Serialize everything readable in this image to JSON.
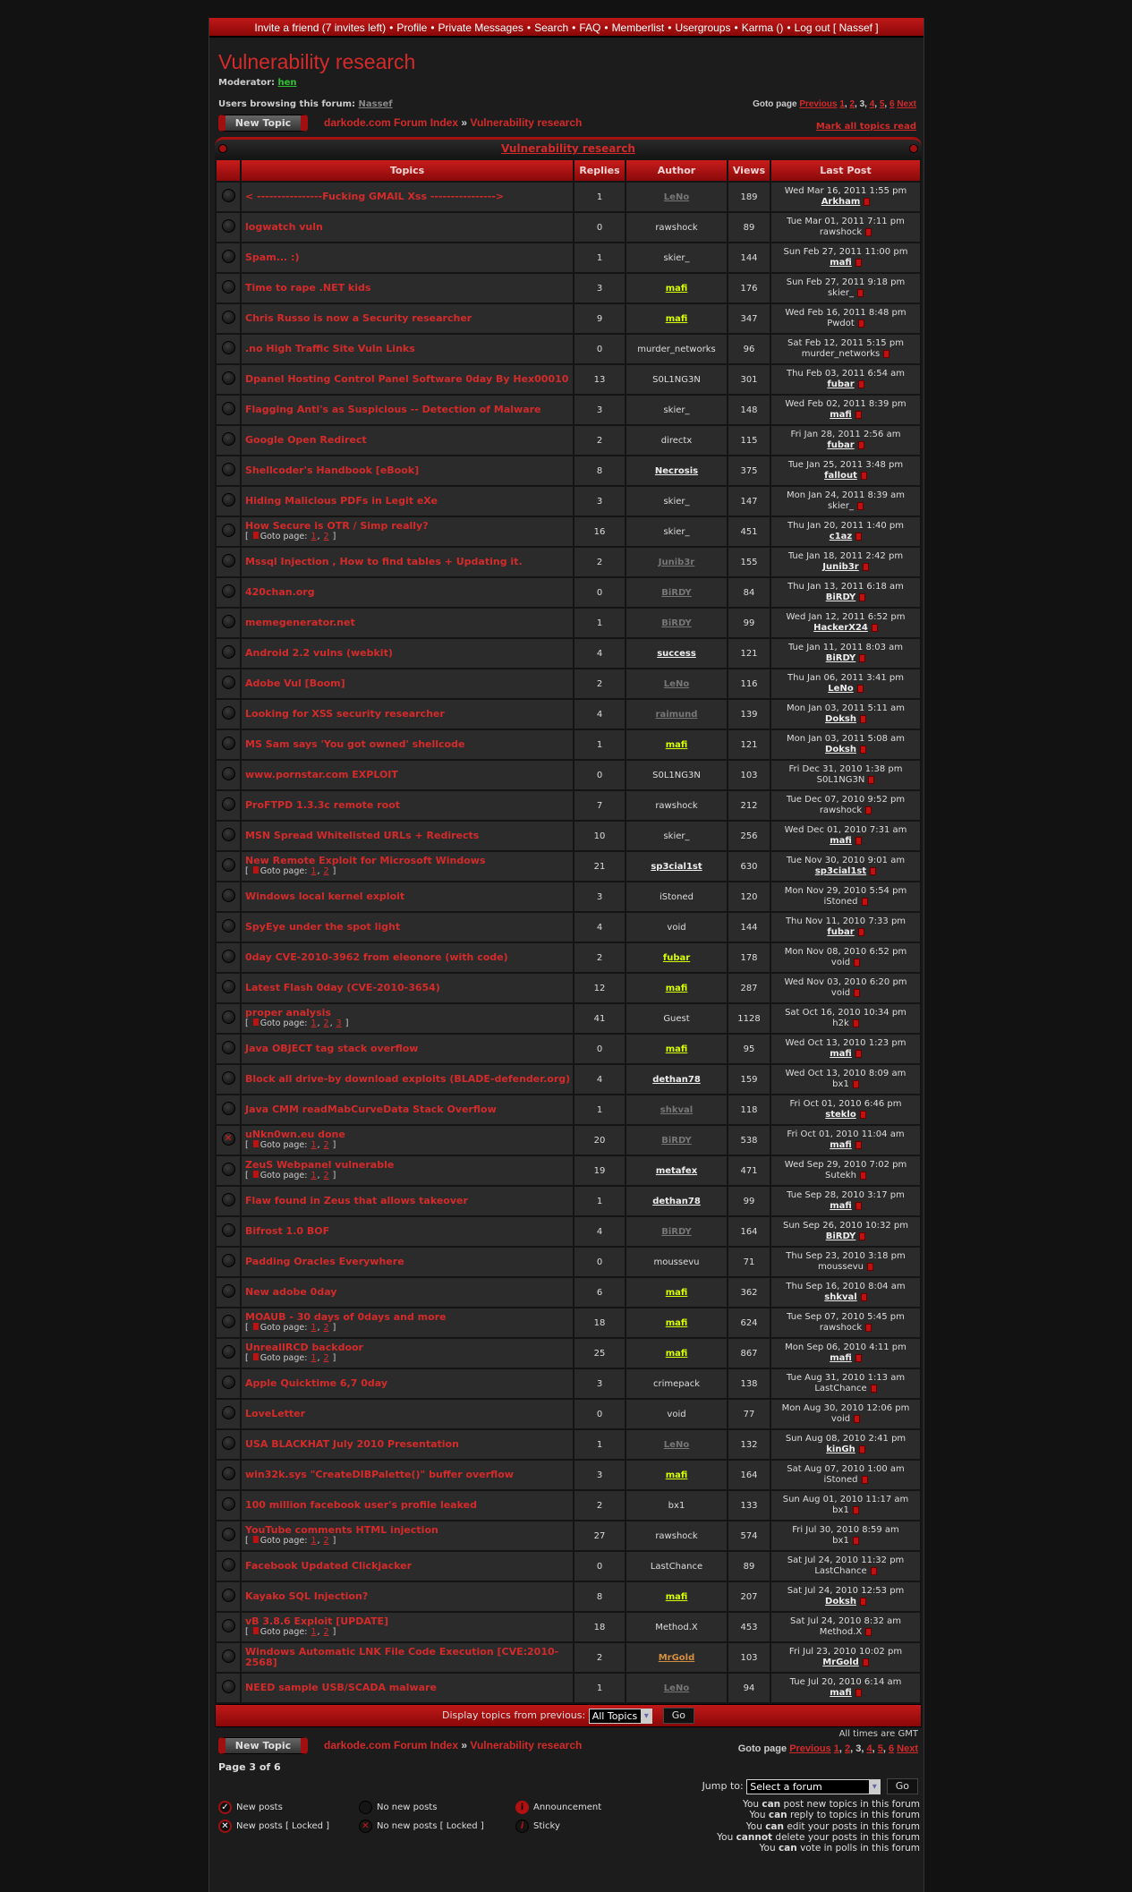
{
  "nav": {
    "items": [
      "Invite a friend (7 invites left)",
      "Profile",
      "Private Messages",
      "Search",
      "FAQ",
      "Memberlist",
      "Usergroups",
      "Karma ()",
      "Log out [ Nassef ]"
    ]
  },
  "forum_title": "Vulnerability research",
  "moderator_label": "Moderator:",
  "moderator": "hen",
  "browsing_label": "Users browsing this forum:",
  "browsing_user": "Nassef",
  "pagination": {
    "label": "Goto page",
    "previous": "Previous",
    "next": "Next",
    "pages": [
      "1",
      "2",
      "3",
      "4",
      "5",
      "6"
    ],
    "current": "3"
  },
  "new_topic": "New Topic",
  "breadcrumb": {
    "index": "darkode.com Forum Index",
    "sep": "»",
    "forum": "Vulnerability research"
  },
  "mark_all": "Mark all topics read",
  "table": {
    "caption": "Vulnerability research",
    "headers": {
      "topics": "Topics",
      "replies": "Replies",
      "author": "Author",
      "views": "Views",
      "last_post": "Last Post"
    },
    "goto_label": "Goto page:",
    "rows": [
      {
        "t": "< ----------------Fucking GMAIL Xss ---------------->",
        "r": "1",
        "a": "LeNo",
        "as": "gray",
        "v": "189",
        "d": "Wed Mar 16, 2011 1:55 pm",
        "u": "Arkham",
        "us": "link"
      },
      {
        "t": "logwatch vuln",
        "r": "0",
        "a": "rawshock",
        "as": "plain",
        "v": "89",
        "d": "Tue Mar 01, 2011 7:11 pm",
        "u": "rawshock",
        "us": "plain"
      },
      {
        "t": "Spam... :)",
        "r": "1",
        "a": "skier_",
        "as": "plain",
        "v": "144",
        "d": "Sun Feb 27, 2011 11:00 pm",
        "u": "mafi",
        "us": "link"
      },
      {
        "t": "Time to rape .NET kids",
        "r": "3",
        "a": "mafi",
        "as": "lime",
        "v": "176",
        "d": "Sun Feb 27, 2011 9:18 pm",
        "u": "skier_",
        "us": "plain"
      },
      {
        "t": "Chris Russo is now a Security researcher",
        "r": "9",
        "a": "mafi",
        "as": "lime",
        "v": "347",
        "d": "Wed Feb 16, 2011 8:48 pm",
        "u": "Pwdot",
        "us": "plain"
      },
      {
        "t": ".no High Traffic Site Vuln Links",
        "r": "0",
        "a": "murder_networks",
        "as": "plain",
        "v": "96",
        "d": "Sat Feb 12, 2011 5:15 pm",
        "u": "murder_networks",
        "us": "plain"
      },
      {
        "t": "Dpanel Hosting Control Panel Software 0day By Hex00010",
        "r": "13",
        "a": "S0L1NG3N",
        "as": "plain",
        "v": "301",
        "d": "Thu Feb 03, 2011 6:54 am",
        "u": "fubar",
        "us": "link"
      },
      {
        "t": "Flagging Anti's as Suspicious -- Detection of Malware",
        "r": "3",
        "a": "skier_",
        "as": "plain",
        "v": "148",
        "d": "Wed Feb 02, 2011 8:39 pm",
        "u": "mafi",
        "us": "link"
      },
      {
        "t": "Google Open Redirect",
        "r": "2",
        "a": "directx",
        "as": "plain",
        "v": "115",
        "d": "Fri Jan 28, 2011 2:56 am",
        "u": "fubar",
        "us": "link"
      },
      {
        "t": "Shellcoder's Handbook [eBook]",
        "r": "8",
        "a": "Necrosis",
        "as": "link",
        "v": "375",
        "d": "Tue Jan 25, 2011 3:48 pm",
        "u": "fallout",
        "us": "link"
      },
      {
        "t": "Hiding Malicious PDFs in Legit eXe",
        "r": "3",
        "a": "skier_",
        "as": "plain",
        "v": "147",
        "d": "Mon Jan 24, 2011 8:39 am",
        "u": "skier_",
        "us": "plain"
      },
      {
        "t": "How Secure is OTR / Simp really?",
        "p": [
          "1",
          "2"
        ],
        "r": "16",
        "a": "skier_",
        "as": "plain",
        "v": "451",
        "d": "Thu Jan 20, 2011 1:40 pm",
        "u": "c1az",
        "us": "link"
      },
      {
        "t": "Mssql Injection , How to find tables + Updating it.",
        "r": "2",
        "a": "Junib3r",
        "as": "gray",
        "v": "155",
        "d": "Tue Jan 18, 2011 2:42 pm",
        "u": "Junib3r",
        "us": "link"
      },
      {
        "t": "420chan.org",
        "r": "0",
        "a": "BiRDY",
        "as": "gray",
        "v": "84",
        "d": "Thu Jan 13, 2011 6:18 am",
        "u": "BiRDY",
        "us": "link"
      },
      {
        "t": "memegenerator.net",
        "r": "1",
        "a": "BiRDY",
        "as": "gray",
        "v": "99",
        "d": "Wed Jan 12, 2011 6:52 pm",
        "u": "HackerX24",
        "us": "link"
      },
      {
        "t": "Android 2.2 vulns (webkit)",
        "r": "4",
        "a": "success",
        "as": "link",
        "v": "121",
        "d": "Tue Jan 11, 2011 8:03 am",
        "u": "BiRDY",
        "us": "link"
      },
      {
        "t": "Adobe Vul [Boom]",
        "r": "2",
        "a": "LeNo",
        "as": "gray",
        "v": "116",
        "d": "Thu Jan 06, 2011 3:41 pm",
        "u": "LeNo",
        "us": "link"
      },
      {
        "t": "Looking for XSS security researcher",
        "r": "4",
        "a": "raimund",
        "as": "gray",
        "v": "139",
        "d": "Mon Jan 03, 2011 5:11 am",
        "u": "Doksh",
        "us": "link"
      },
      {
        "t": "MS Sam says 'You got owned' shellcode",
        "r": "1",
        "a": "mafi",
        "as": "lime",
        "v": "121",
        "d": "Mon Jan 03, 2011 5:08 am",
        "u": "Doksh",
        "us": "link"
      },
      {
        "t": "www.pornstar.com EXPLOIT",
        "r": "0",
        "a": "S0L1NG3N",
        "as": "plain",
        "v": "103",
        "d": "Fri Dec 31, 2010 1:38 pm",
        "u": "S0L1NG3N",
        "us": "plain"
      },
      {
        "t": "ProFTPD 1.3.3c remote root",
        "r": "7",
        "a": "rawshock",
        "as": "plain",
        "v": "212",
        "d": "Tue Dec 07, 2010 9:52 pm",
        "u": "rawshock",
        "us": "plain"
      },
      {
        "t": "MSN Spread Whitelisted URLs + Redirects",
        "r": "10",
        "a": "skier_",
        "as": "plain",
        "v": "256",
        "d": "Wed Dec 01, 2010 7:31 am",
        "u": "mafi",
        "us": "link"
      },
      {
        "t": "New Remote Exploit for Microsoft Windows",
        "p": [
          "1",
          "2"
        ],
        "r": "21",
        "a": "sp3cial1st",
        "as": "link",
        "v": "630",
        "d": "Tue Nov 30, 2010 9:01 am",
        "u": "sp3cial1st",
        "us": "link"
      },
      {
        "t": "Windows local kernel exploit",
        "r": "3",
        "a": "iStoned",
        "as": "plain",
        "v": "120",
        "d": "Mon Nov 29, 2010 5:54 pm",
        "u": "iStoned",
        "us": "plain"
      },
      {
        "t": "SpyEye under the spot light",
        "r": "4",
        "a": "void",
        "as": "plain",
        "v": "144",
        "d": "Thu Nov 11, 2010 7:33 pm",
        "u": "fubar",
        "us": "link"
      },
      {
        "t": "0day CVE-2010-3962 from eleonore (with code)",
        "r": "2",
        "a": "fubar",
        "as": "lime",
        "v": "178",
        "d": "Mon Nov 08, 2010 6:52 pm",
        "u": "void",
        "us": "plain"
      },
      {
        "t": "Latest Flash 0day (CVE-2010-3654)",
        "r": "12",
        "a": "mafi",
        "as": "lime",
        "v": "287",
        "d": "Wed Nov 03, 2010 6:20 pm",
        "u": "void",
        "us": "plain"
      },
      {
        "t": "proper analysis",
        "p": [
          "1",
          "2",
          "3"
        ],
        "r": "41",
        "a": "Guest",
        "as": "plain",
        "v": "1128",
        "d": "Sat Oct 16, 2010 10:34 pm",
        "u": "h2k",
        "us": "plain"
      },
      {
        "t": "Java OBJECT tag stack overflow",
        "r": "0",
        "a": "mafi",
        "as": "lime",
        "v": "95",
        "d": "Wed Oct 13, 2010 1:23 pm",
        "u": "mafi",
        "us": "link"
      },
      {
        "t": "Block all drive-by download exploits (BLADE-defender.org)",
        "r": "4",
        "a": "dethan78",
        "as": "link",
        "v": "159",
        "d": "Wed Oct 13, 2010 8:09 am",
        "u": "bx1",
        "us": "plain"
      },
      {
        "t": "Java CMM readMabCurveData Stack Overflow",
        "r": "1",
        "a": "shkval",
        "as": "gray",
        "v": "118",
        "d": "Fri Oct 01, 2010 6:46 pm",
        "u": "steklo",
        "us": "link"
      },
      {
        "t": "uNkn0wn.eu done",
        "p": [
          "1",
          "2"
        ],
        "r": "20",
        "a": "BiRDY",
        "as": "gray",
        "v": "538",
        "d": "Fri Oct 01, 2010 11:04 am",
        "u": "mafi",
        "us": "link",
        "locked": true
      },
      {
        "t": "ZeuS Webpanel vulnerable",
        "p": [
          "1",
          "2"
        ],
        "r": "19",
        "a": "metafex",
        "as": "link",
        "v": "471",
        "d": "Wed Sep 29, 2010 7:02 pm",
        "u": "Sutekh",
        "us": "plain"
      },
      {
        "t": "Flaw found in Zeus that allows takeover",
        "r": "1",
        "a": "dethan78",
        "as": "link",
        "v": "99",
        "d": "Tue Sep 28, 2010 3:17 pm",
        "u": "mafi",
        "us": "link"
      },
      {
        "t": "Bifrost 1.0 BOF",
        "r": "4",
        "a": "BiRDY",
        "as": "gray",
        "v": "164",
        "d": "Sun Sep 26, 2010 10:32 pm",
        "u": "BiRDY",
        "us": "link"
      },
      {
        "t": "Padding Oracles Everywhere",
        "r": "0",
        "a": "moussevu",
        "as": "plain",
        "v": "71",
        "d": "Thu Sep 23, 2010 3:18 pm",
        "u": "moussevu",
        "us": "plain"
      },
      {
        "t": "New adobe 0day",
        "r": "6",
        "a": "mafi",
        "as": "lime",
        "v": "362",
        "d": "Thu Sep 16, 2010 8:04 am",
        "u": "shkval",
        "us": "link"
      },
      {
        "t": "MOAUB - 30 days of 0days and more",
        "p": [
          "1",
          "2"
        ],
        "r": "18",
        "a": "mafi",
        "as": "lime",
        "v": "624",
        "d": "Tue Sep 07, 2010 5:45 pm",
        "u": "rawshock",
        "us": "plain"
      },
      {
        "t": "UnrealIRCD backdoor",
        "p": [
          "1",
          "2"
        ],
        "r": "25",
        "a": "mafi",
        "as": "lime",
        "v": "867",
        "d": "Mon Sep 06, 2010 4:11 pm",
        "u": "mafi",
        "us": "link"
      },
      {
        "t": "Apple Quicktime 6,7 0day",
        "r": "3",
        "a": "crimepack",
        "as": "plain",
        "v": "138",
        "d": "Tue Aug 31, 2010 1:13 am",
        "u": "LastChance",
        "us": "plain"
      },
      {
        "t": "LoveLetter",
        "r": "0",
        "a": "void",
        "as": "plain",
        "v": "77",
        "d": "Mon Aug 30, 2010 12:06 pm",
        "u": "void",
        "us": "plain"
      },
      {
        "t": "USA BLACKHAT July 2010 Presentation",
        "r": "1",
        "a": "LeNo",
        "as": "gray",
        "v": "132",
        "d": "Sun Aug 08, 2010 2:41 pm",
        "u": "kinGh",
        "us": "link"
      },
      {
        "t": "win32k.sys \"CreateDIBPalette()\" buffer overflow",
        "r": "3",
        "a": "mafi",
        "as": "lime",
        "v": "164",
        "d": "Sat Aug 07, 2010 1:00 am",
        "u": "iStoned",
        "us": "plain"
      },
      {
        "t": "100 million facebook user's profile leaked",
        "r": "2",
        "a": "bx1",
        "as": "plain",
        "v": "133",
        "d": "Sun Aug 01, 2010 11:17 am",
        "u": "bx1",
        "us": "plain"
      },
      {
        "t": "YouTube comments HTML injection",
        "p": [
          "1",
          "2"
        ],
        "r": "27",
        "a": "rawshock",
        "as": "plain",
        "v": "574",
        "d": "Fri Jul 30, 2010 8:59 am",
        "u": "bx1",
        "us": "plain"
      },
      {
        "t": "Facebook Updated Clickjacker",
        "r": "0",
        "a": "LastChance",
        "as": "plain",
        "v": "89",
        "d": "Sat Jul 24, 2010 11:32 pm",
        "u": "LastChance",
        "us": "plain"
      },
      {
        "t": "Kayako SQL Injection?",
        "r": "8",
        "a": "mafi",
        "as": "lime",
        "v": "207",
        "d": "Sat Jul 24, 2010 12:53 pm",
        "u": "Doksh",
        "us": "link"
      },
      {
        "t": "vB 3.8.6 Exploit [UPDATE]",
        "p": [
          "1",
          "2"
        ],
        "r": "18",
        "a": "Method.X",
        "as": "plain",
        "v": "453",
        "d": "Sat Jul 24, 2010 8:32 am",
        "u": "Method.X",
        "us": "plain"
      },
      {
        "t": "Windows Automatic LNK File Code Execution [CVE:2010-2568]",
        "r": "2",
        "a": "MrGold",
        "as": "gold",
        "v": "103",
        "d": "Fri Jul 23, 2010 10:02 pm",
        "u": "MrGold",
        "us": "link"
      },
      {
        "t": "NEED sample USB/SCADA malware",
        "r": "1",
        "a": "LeNo",
        "as": "gray",
        "v": "94",
        "d": "Tue Jul 20, 2010 6:14 am",
        "u": "mafi",
        "us": "link"
      }
    ]
  },
  "display_bar": {
    "label": "Display topics from previous:",
    "selected": "All Topics",
    "go": "Go"
  },
  "times_note": "All times are GMT",
  "page_of": "Page 3 of 6",
  "jump": {
    "label": "Jump to:",
    "selected": "Select a forum",
    "go": "Go"
  },
  "legend": {
    "new_posts": "New posts",
    "no_new_posts": "No new posts",
    "announcement": "Announcement",
    "new_locked": "New posts [ Locked ]",
    "no_new_locked": "No new posts [ Locked ]",
    "sticky": "Sticky"
  },
  "permissions": [
    [
      "You ",
      "can",
      " post new topics in this forum"
    ],
    [
      "You ",
      "can",
      " reply to topics in this forum"
    ],
    [
      "You ",
      "can",
      " edit your posts in this forum"
    ],
    [
      "You ",
      "cannot",
      " delete your posts in this forum"
    ],
    [
      "You ",
      "can",
      " vote in polls in this forum"
    ]
  ],
  "colors": {
    "accent": "#d42a2a",
    "header_red": "#b01414",
    "moderator_green": "#2ec42e",
    "lime_user": "#d8ff00",
    "gold_user": "#d49040"
  }
}
